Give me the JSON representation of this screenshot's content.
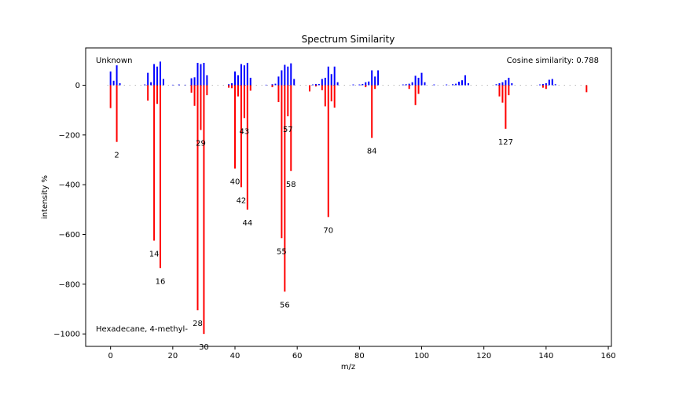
{
  "chart_data": {
    "type": "bar",
    "title": "Spectrum Similarity",
    "xlabel": "m/z",
    "ylabel": "intensity %",
    "xlim": [
      -8,
      161
    ],
    "ylim": [
      -1050,
      150
    ],
    "xticks": [
      0,
      20,
      40,
      60,
      80,
      100,
      120,
      140,
      160
    ],
    "yticks": [
      0,
      -200,
      -400,
      -600,
      -800,
      -1000
    ],
    "grid": false,
    "annotations": {
      "top_left": "Unknown",
      "top_right": "Cosine similarity: 0.788",
      "bottom_left": "Hexadecane, 4-methyl-"
    },
    "series": [
      {
        "name": "Unknown",
        "color": "#0000ff",
        "x": [
          0,
          1,
          2,
          3,
          11,
          12,
          13,
          14,
          15,
          16,
          17,
          20,
          22,
          24,
          26,
          27,
          28,
          29,
          30,
          31,
          38,
          39,
          40,
          41,
          42,
          43,
          44,
          45,
          50,
          52,
          53,
          54,
          55,
          56,
          57,
          58,
          59,
          65,
          66,
          67,
          68,
          69,
          70,
          71,
          72,
          73,
          78,
          80,
          81,
          82,
          83,
          84,
          85,
          86,
          94,
          95,
          96,
          97,
          98,
          99,
          100,
          101,
          104,
          108,
          110,
          111,
          112,
          113,
          114,
          115,
          124,
          125,
          126,
          127,
          128,
          129,
          138,
          139,
          140,
          141,
          142,
          143
        ],
        "values": [
          55,
          18,
          80,
          8,
          3,
          50,
          12,
          85,
          75,
          95,
          25,
          2,
          3,
          2,
          28,
          32,
          90,
          85,
          90,
          40,
          4,
          8,
          55,
          40,
          85,
          80,
          90,
          30,
          2,
          4,
          6,
          35,
          60,
          82,
          75,
          88,
          25,
          3,
          5,
          5,
          25,
          30,
          75,
          45,
          75,
          12,
          3,
          3,
          5,
          12,
          15,
          60,
          35,
          60,
          3,
          4,
          6,
          12,
          38,
          30,
          50,
          12,
          3,
          3,
          4,
          6,
          14,
          20,
          40,
          8,
          4,
          8,
          12,
          20,
          30,
          8,
          3,
          5,
          8,
          22,
          25,
          4
        ]
      },
      {
        "name": "Hexadecane, 4-methyl-",
        "color": "#ff0000",
        "x": [
          0,
          2,
          12,
          14,
          15,
          16,
          26,
          27,
          28,
          29,
          30,
          31,
          38,
          39,
          40,
          41,
          42,
          43,
          44,
          45,
          52,
          54,
          55,
          56,
          57,
          58,
          64,
          66,
          68,
          69,
          70,
          71,
          72,
          82,
          84,
          85,
          96,
          98,
          99,
          125,
          126,
          127,
          128,
          139,
          140,
          153
        ],
        "values": [
          -92,
          -228,
          -62,
          -625,
          -75,
          -735,
          -30,
          -83,
          -905,
          -180,
          -1000,
          -40,
          -10,
          -12,
          -335,
          -45,
          -410,
          -132,
          -500,
          -22,
          -8,
          -68,
          -615,
          -830,
          -125,
          -345,
          -25,
          -5,
          -20,
          -85,
          -530,
          -65,
          -90,
          -8,
          -212,
          -15,
          -15,
          -80,
          -35,
          -45,
          -70,
          -175,
          -40,
          -10,
          -15,
          -28
        ]
      }
    ],
    "peak_labels": [
      {
        "text": "2",
        "x": 2,
        "y": -228
      },
      {
        "text": "14",
        "x": 14,
        "y": -625
      },
      {
        "text": "16",
        "x": 16,
        "y": -735
      },
      {
        "text": "28",
        "x": 28,
        "y": -905
      },
      {
        "text": "29",
        "x": 29,
        "y": -180
      },
      {
        "text": "30",
        "x": 30,
        "y": -1000
      },
      {
        "text": "40",
        "x": 40,
        "y": -335
      },
      {
        "text": "42",
        "x": 42,
        "y": -410
      },
      {
        "text": "43",
        "x": 43,
        "y": -132
      },
      {
        "text": "44",
        "x": 44,
        "y": -500
      },
      {
        "text": "55",
        "x": 55,
        "y": -615
      },
      {
        "text": "56",
        "x": 56,
        "y": -830
      },
      {
        "text": "57",
        "x": 57,
        "y": -125
      },
      {
        "text": "58",
        "x": 58,
        "y": -345
      },
      {
        "text": "70",
        "x": 70,
        "y": -530
      },
      {
        "text": "84",
        "x": 84,
        "y": -212
      },
      {
        "text": "127",
        "x": 127,
        "y": -175
      }
    ]
  }
}
